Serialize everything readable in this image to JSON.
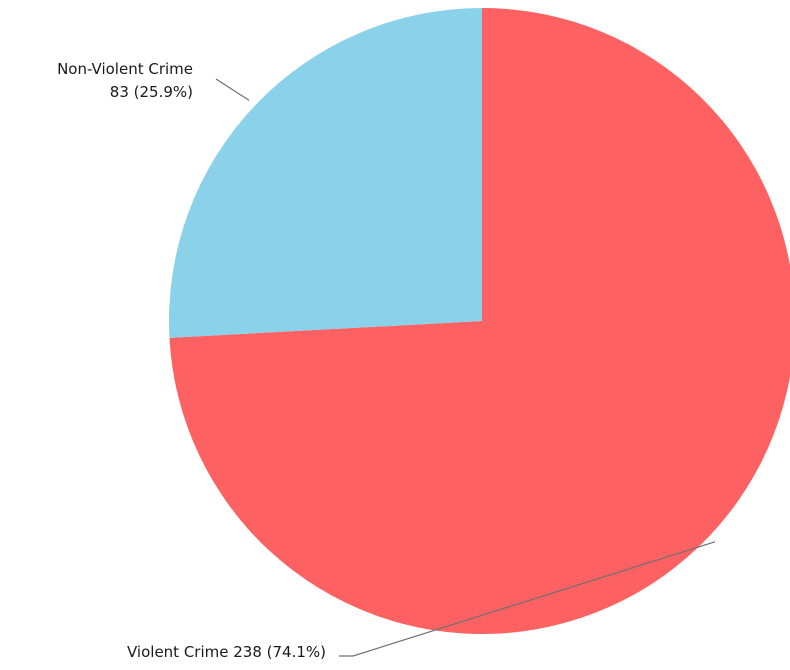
{
  "chart_data": {
    "type": "pie",
    "title": "",
    "series": [
      {
        "name": "Violent Crime",
        "value": 238,
        "percent_label": "(74.1%)",
        "label_line1": "Violent Crime 238 (74.1%)",
        "label_line2": "",
        "color": "#fd6161"
      },
      {
        "name": "Non-Violent Crime",
        "value": 83,
        "percent_label": "(25.9%)",
        "label_line1": "Non-Violent Crime",
        "label_line2": "83 (25.9%)",
        "color": "#89d2ea"
      }
    ],
    "start_angle_deg": 0,
    "direction": "clockwise",
    "legend": "none"
  }
}
